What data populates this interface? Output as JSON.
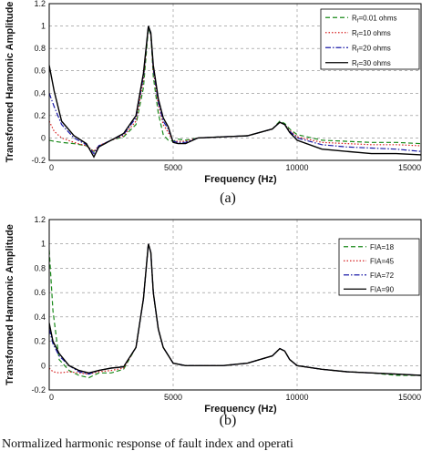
{
  "chart_data": [
    {
      "type": "line",
      "caption": "(a)",
      "xlabel": "Frequency (Hz)",
      "ylabel": "Transformed Harmonic Amplitude",
      "xlim": [
        0,
        15000
      ],
      "ylim": [
        -0.2,
        1.2
      ],
      "xticks": [
        "0",
        "5000",
        "10000",
        "15000"
      ],
      "yticks": [
        "-0.2",
        "0",
        "0.2",
        "0.4",
        "0.6",
        "0.8",
        "1",
        "1.2"
      ],
      "grid": true,
      "legend_position": "top-right",
      "series": [
        {
          "name": "Rf=0.01 ohms",
          "legend_main": "R",
          "legend_sub": "f",
          "legend_rest": "=0.01 ohms",
          "color": "#1a8a1a",
          "dash": "5 3",
          "x": [
            0,
            200,
            500,
            1000,
            1500,
            1800,
            2000,
            2500,
            3000,
            3500,
            3800,
            4000,
            4100,
            4200,
            4400,
            4600,
            4800,
            5000,
            5200,
            5500,
            6000,
            7000,
            8000,
            9000,
            9300,
            9500,
            9700,
            10000,
            11000,
            12000,
            13000,
            14000,
            15000
          ],
          "y": [
            -0.02,
            -0.03,
            -0.04,
            -0.05,
            -0.07,
            -0.12,
            -0.08,
            -0.02,
            0.01,
            0.12,
            0.45,
            0.98,
            0.92,
            0.55,
            0.22,
            0.03,
            -0.02,
            -0.03,
            -0.01,
            -0.02,
            0.0,
            0.01,
            0.02,
            0.08,
            0.15,
            0.13,
            0.08,
            0.03,
            -0.02,
            -0.03,
            -0.04,
            -0.04,
            -0.05
          ]
        },
        {
          "name": "Rf=10 ohms",
          "legend_main": "R",
          "legend_sub": "f",
          "legend_rest": "=10 ohms",
          "color": "#d62020",
          "dash": "1.5 2",
          "x": [
            0,
            200,
            500,
            1000,
            1500,
            1800,
            2000,
            2500,
            3000,
            3500,
            3800,
            4000,
            4100,
            4200,
            4400,
            4600,
            4800,
            5000,
            5200,
            5500,
            6000,
            7000,
            8000,
            9000,
            9300,
            9500,
            9700,
            10000,
            11000,
            12000,
            13000,
            14000,
            15000
          ],
          "y": [
            0.15,
            0.06,
            0.0,
            -0.04,
            -0.07,
            -0.12,
            -0.07,
            -0.02,
            0.02,
            0.15,
            0.52,
            1.0,
            0.92,
            0.6,
            0.3,
            0.12,
            0.05,
            -0.03,
            -0.03,
            -0.03,
            0.0,
            0.01,
            0.02,
            0.08,
            0.14,
            0.12,
            0.07,
            0.01,
            -0.04,
            -0.05,
            -0.06,
            -0.06,
            -0.07
          ]
        },
        {
          "name": "Rf=20 ohms",
          "legend_main": "R",
          "legend_sub": "f",
          "legend_rest": "=20 ohms",
          "color": "#1a1aa8",
          "dash": "6 2 1.5 2",
          "x": [
            0,
            200,
            500,
            1000,
            1500,
            1800,
            2000,
            2500,
            3000,
            3500,
            3800,
            4000,
            4100,
            4200,
            4400,
            4600,
            4800,
            5000,
            5200,
            5500,
            6000,
            7000,
            8000,
            9000,
            9300,
            9500,
            9700,
            10000,
            11000,
            12000,
            13000,
            14000,
            15000
          ],
          "y": [
            0.4,
            0.28,
            0.12,
            0.0,
            -0.06,
            -0.14,
            -0.07,
            -0.02,
            0.03,
            0.18,
            0.55,
            1.0,
            0.93,
            0.62,
            0.32,
            0.15,
            0.08,
            -0.03,
            -0.04,
            -0.04,
            0.0,
            0.01,
            0.02,
            0.08,
            0.14,
            0.12,
            0.06,
            0.0,
            -0.06,
            -0.08,
            -0.09,
            -0.1,
            -0.12
          ]
        },
        {
          "name": "Rf=30 ohms",
          "legend_main": "R",
          "legend_sub": "f",
          "legend_rest": "=30 ohms",
          "color": "#000000",
          "dash": "",
          "x": [
            0,
            200,
            500,
            1000,
            1500,
            1800,
            2000,
            2500,
            3000,
            3500,
            3800,
            4000,
            4100,
            4200,
            4400,
            4600,
            4800,
            5000,
            5200,
            5500,
            6000,
            7000,
            8000,
            9000,
            9300,
            9500,
            9700,
            10000,
            11000,
            12000,
            13000,
            14000,
            15000
          ],
          "y": [
            0.65,
            0.42,
            0.15,
            0.02,
            -0.05,
            -0.17,
            -0.08,
            -0.02,
            0.04,
            0.2,
            0.58,
            1.0,
            0.94,
            0.65,
            0.35,
            0.18,
            0.1,
            -0.04,
            -0.05,
            -0.05,
            0.0,
            0.01,
            0.02,
            0.08,
            0.14,
            0.12,
            0.05,
            -0.02,
            -0.1,
            -0.12,
            -0.14,
            -0.14,
            -0.15
          ]
        }
      ]
    },
    {
      "type": "line",
      "caption": "(b)",
      "xlabel": "Frequency (Hz)",
      "ylabel": "Transformed Harmonic Amplitude",
      "xlim": [
        0,
        15000
      ],
      "ylim": [
        -0.2,
        1.2
      ],
      "xticks": [
        "0",
        "5000",
        "10000",
        "15000"
      ],
      "yticks": [
        "-0.2",
        "0",
        "0.2",
        "0.4",
        "0.6",
        "0.8",
        "1",
        "1.2"
      ],
      "grid": true,
      "legend_position": "top-right",
      "series": [
        {
          "name": "FIA=18",
          "legend_main": "FIA=18",
          "legend_sub": "",
          "legend_rest": "",
          "color": "#1a8a1a",
          "dash": "5 3",
          "x": [
            0,
            150,
            400,
            800,
            1200,
            1600,
            2000,
            2500,
            3000,
            3500,
            3800,
            4000,
            4100,
            4200,
            4400,
            4600,
            5000,
            5500,
            6000,
            7000,
            8000,
            9000,
            9300,
            9500,
            9700,
            10000,
            11000,
            12000,
            13000,
            14000,
            15000
          ],
          "y": [
            0.95,
            0.45,
            0.05,
            -0.04,
            -0.08,
            -0.1,
            -0.06,
            -0.06,
            -0.03,
            0.15,
            0.55,
            1.0,
            0.93,
            0.6,
            0.3,
            0.15,
            0.02,
            0.0,
            0.0,
            0.0,
            0.02,
            0.08,
            0.14,
            0.12,
            0.05,
            0.0,
            -0.03,
            -0.05,
            -0.06,
            -0.08,
            -0.08
          ]
        },
        {
          "name": "FIA=45",
          "legend_main": "FIA=45",
          "legend_sub": "",
          "legend_rest": "",
          "color": "#d62020",
          "dash": "1.5 2",
          "x": [
            0,
            150,
            400,
            800,
            1200,
            1600,
            2000,
            2500,
            3000,
            3500,
            3800,
            4000,
            4100,
            4200,
            4400,
            4600,
            5000,
            5500,
            6000,
            7000,
            8000,
            9000,
            9300,
            9500,
            9700,
            10000,
            11000,
            12000,
            13000,
            14000,
            15000
          ],
          "y": [
            -0.02,
            -0.05,
            -0.06,
            -0.05,
            -0.06,
            -0.07,
            -0.05,
            -0.04,
            -0.02,
            0.15,
            0.55,
            1.0,
            0.93,
            0.6,
            0.3,
            0.15,
            0.02,
            0.0,
            0.0,
            0.0,
            0.02,
            0.08,
            0.14,
            0.12,
            0.05,
            0.0,
            -0.03,
            -0.05,
            -0.06,
            -0.07,
            -0.08
          ]
        },
        {
          "name": "FIA=72",
          "legend_main": "FIA=72",
          "legend_sub": "",
          "legend_rest": "",
          "color": "#1a1aa8",
          "dash": "6 2 1.5 2",
          "x": [
            0,
            150,
            400,
            800,
            1200,
            1600,
            2000,
            2500,
            3000,
            3500,
            3800,
            4000,
            4100,
            4200,
            4400,
            4600,
            5000,
            5500,
            6000,
            7000,
            8000,
            9000,
            9300,
            9500,
            9700,
            10000,
            11000,
            12000,
            13000,
            14000,
            15000
          ],
          "y": [
            0.3,
            0.18,
            0.08,
            0.0,
            -0.05,
            -0.07,
            -0.04,
            -0.02,
            -0.01,
            0.15,
            0.55,
            1.0,
            0.93,
            0.6,
            0.3,
            0.15,
            0.02,
            0.0,
            0.0,
            0.0,
            0.02,
            0.08,
            0.14,
            0.12,
            0.05,
            0.0,
            -0.03,
            -0.05,
            -0.06,
            -0.07,
            -0.08
          ]
        },
        {
          "name": "FIA=90",
          "legend_main": "FIA=90",
          "legend_sub": "",
          "legend_rest": "",
          "color": "#000000",
          "dash": "",
          "x": [
            0,
            150,
            400,
            800,
            1200,
            1600,
            2000,
            2500,
            3000,
            3500,
            3800,
            4000,
            4100,
            4200,
            4400,
            4600,
            5000,
            5500,
            6000,
            7000,
            8000,
            9000,
            9300,
            9500,
            9700,
            10000,
            11000,
            12000,
            13000,
            14000,
            15000
          ],
          "y": [
            0.35,
            0.2,
            0.1,
            0.0,
            -0.04,
            -0.06,
            -0.04,
            -0.02,
            -0.01,
            0.15,
            0.55,
            1.0,
            0.93,
            0.6,
            0.3,
            0.15,
            0.02,
            0.0,
            0.0,
            0.0,
            0.02,
            0.08,
            0.14,
            0.12,
            0.05,
            0.0,
            -0.03,
            -0.05,
            -0.06,
            -0.07,
            -0.08
          ]
        }
      ]
    }
  ],
  "footer_text": "Normalized harmonic response of fault index and operati"
}
